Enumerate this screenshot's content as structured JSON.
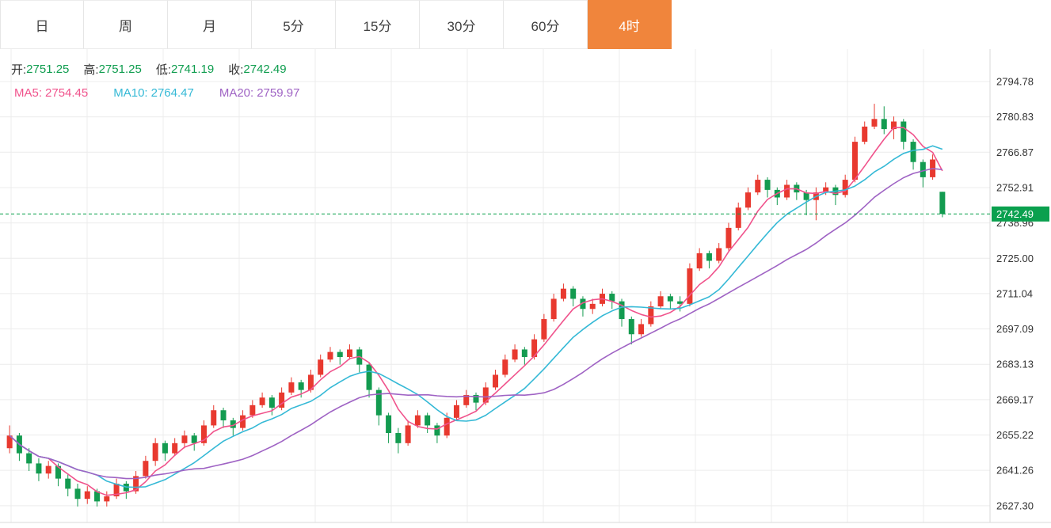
{
  "tabs": [
    {
      "label": "日",
      "active": false
    },
    {
      "label": "周",
      "active": false
    },
    {
      "label": "月",
      "active": false
    },
    {
      "label": "5分",
      "active": false
    },
    {
      "label": "15分",
      "active": false
    },
    {
      "label": "30分",
      "active": false
    },
    {
      "label": "60分",
      "active": false
    },
    {
      "label": "4时",
      "active": true
    }
  ],
  "info": {
    "open_label": "开:",
    "open": "2751.25",
    "high_label": "高:",
    "high": "2751.25",
    "low_label": "低:",
    "low": "2741.19",
    "close_label": "收:",
    "close": "2742.49",
    "ma5_label": "MA5:",
    "ma5": "2754.45",
    "ma10_label": "MA10:",
    "ma10": "2764.47",
    "ma20_label": "MA20:",
    "ma20": "2759.97"
  },
  "colors": {
    "accent": "#f0853c",
    "up": "#e8392f",
    "down": "#139b50",
    "ma5": "#f0538c",
    "ma10": "#35b9d6",
    "ma20": "#9f63c4",
    "grid": "#ececec",
    "axis_line": "#d9d9d9",
    "axis_text": "#333333",
    "price_line": "#0aa04e"
  },
  "axis": {
    "labels": [
      "2794.78",
      "2780.83",
      "2766.87",
      "2752.91",
      "2738.96",
      "2725.00",
      "2711.04",
      "2697.09",
      "2683.13",
      "2669.17",
      "2655.22",
      "2641.26",
      "2627.30"
    ]
  },
  "current_price": "2742.49",
  "chart_data": {
    "type": "candlestick",
    "timeframe": "4时",
    "ylim": [
      2618.5,
      2807.6
    ],
    "price_range": [
      2618.5,
      2807.6
    ],
    "legend": [
      "MA5",
      "MA10",
      "MA20"
    ],
    "ma_periods": [
      5,
      10,
      20
    ],
    "last_candle": {
      "open": 2751.25,
      "high": 2751.25,
      "low": 2741.19,
      "close": 2742.49
    },
    "ohlc": [
      [
        2650,
        2659,
        2648,
        2655
      ],
      [
        2655,
        2656,
        2645,
        2648
      ],
      [
        2648,
        2650,
        2641,
        2644
      ],
      [
        2644,
        2646,
        2637,
        2640
      ],
      [
        2640,
        2645,
        2638,
        2643
      ],
      [
        2643,
        2644,
        2635,
        2638
      ],
      [
        2638,
        2640,
        2631,
        2634
      ],
      [
        2634,
        2636,
        2627,
        2630
      ],
      [
        2630,
        2635,
        2628,
        2633
      ],
      [
        2633,
        2634,
        2627,
        2629
      ],
      [
        2629,
        2633,
        2627,
        2631
      ],
      [
        2631,
        2638,
        2630,
        2636
      ],
      [
        2636,
        2637,
        2630,
        2633
      ],
      [
        2633,
        2641,
        2632,
        2639
      ],
      [
        2639,
        2647,
        2638,
        2645
      ],
      [
        2645,
        2654,
        2643,
        2652
      ],
      [
        2652,
        2653,
        2645,
        2648
      ],
      [
        2648,
        2654,
        2647,
        2652
      ],
      [
        2652,
        2657,
        2650,
        2655
      ],
      [
        2655,
        2656,
        2649,
        2652
      ],
      [
        2652,
        2661,
        2651,
        2659
      ],
      [
        2659,
        2667,
        2658,
        2665
      ],
      [
        2665,
        2666,
        2658,
        2661
      ],
      [
        2661,
        2662,
        2655,
        2658
      ],
      [
        2658,
        2665,
        2657,
        2663
      ],
      [
        2663,
        2669,
        2662,
        2667
      ],
      [
        2667,
        2672,
        2666,
        2670
      ],
      [
        2670,
        2671,
        2663,
        2666
      ],
      [
        2666,
        2674,
        2665,
        2672
      ],
      [
        2672,
        2678,
        2671,
        2676
      ],
      [
        2676,
        2677,
        2670,
        2673
      ],
      [
        2673,
        2681,
        2672,
        2679
      ],
      [
        2679,
        2687,
        2678,
        2685
      ],
      [
        2685,
        2690,
        2684,
        2688
      ],
      [
        2688,
        2689,
        2683,
        2686
      ],
      [
        2686,
        2691,
        2685,
        2689
      ],
      [
        2689,
        2690,
        2680,
        2683
      ],
      [
        2683,
        2684,
        2670,
        2673
      ],
      [
        2673,
        2674,
        2659,
        2663
      ],
      [
        2663,
        2664,
        2652,
        2656
      ],
      [
        2656,
        2658,
        2648,
        2652
      ],
      [
        2652,
        2661,
        2651,
        2659
      ],
      [
        2659,
        2665,
        2658,
        2663
      ],
      [
        2663,
        2664,
        2656,
        2659
      ],
      [
        2659,
        2660,
        2652,
        2655
      ],
      [
        2655,
        2664,
        2654,
        2662
      ],
      [
        2662,
        2669,
        2661,
        2667
      ],
      [
        2667,
        2673,
        2666,
        2671
      ],
      [
        2671,
        2672,
        2665,
        2668
      ],
      [
        2668,
        2676,
        2667,
        2674
      ],
      [
        2674,
        2681,
        2673,
        2679
      ],
      [
        2679,
        2687,
        2678,
        2685
      ],
      [
        2685,
        2691,
        2684,
        2689
      ],
      [
        2689,
        2690,
        2683,
        2686
      ],
      [
        2686,
        2695,
        2685,
        2693
      ],
      [
        2693,
        2703,
        2692,
        2701
      ],
      [
        2701,
        2711,
        2700,
        2709
      ],
      [
        2709,
        2715,
        2708,
        2713
      ],
      [
        2713,
        2714,
        2706,
        2709
      ],
      [
        2709,
        2710,
        2702,
        2705
      ],
      [
        2705,
        2709,
        2703,
        2707
      ],
      [
        2707,
        2713,
        2706,
        2711
      ],
      [
        2711,
        2712,
        2705,
        2708
      ],
      [
        2708,
        2709,
        2698,
        2701
      ],
      [
        2701,
        2702,
        2691,
        2695
      ],
      [
        2695,
        2701,
        2694,
        2699
      ],
      [
        2699,
        2708,
        2698,
        2706
      ],
      [
        2706,
        2712,
        2705,
        2710
      ],
      [
        2710,
        2711,
        2705,
        2708
      ],
      [
        2708,
        2710,
        2704,
        2707
      ],
      [
        2707,
        2723,
        2706,
        2721
      ],
      [
        2721,
        2729,
        2720,
        2727
      ],
      [
        2727,
        2728,
        2721,
        2724
      ],
      [
        2724,
        2731,
        2723,
        2729
      ],
      [
        2729,
        2739,
        2728,
        2737
      ],
      [
        2737,
        2747,
        2736,
        2745
      ],
      [
        2745,
        2753,
        2744,
        2751
      ],
      [
        2751,
        2758,
        2750,
        2756
      ],
      [
        2756,
        2757,
        2749,
        2752
      ],
      [
        2752,
        2753,
        2746,
        2749
      ],
      [
        2749,
        2756,
        2748,
        2754
      ],
      [
        2754,
        2755,
        2748,
        2751
      ],
      [
        2751,
        2752,
        2742,
        2748
      ],
      [
        2748,
        2753,
        2740,
        2751
      ],
      [
        2751,
        2755,
        2750,
        2753
      ],
      [
        2753,
        2754,
        2746,
        2750
      ],
      [
        2750,
        2758,
        2749,
        2756
      ],
      [
        2756,
        2773,
        2755,
        2771
      ],
      [
        2771,
        2779,
        2770,
        2777
      ],
      [
        2777,
        2786,
        2776,
        2780
      ],
      [
        2780,
        2785,
        2774,
        2776
      ],
      [
        2776,
        2781,
        2772,
        2779
      ],
      [
        2779,
        2780,
        2768,
        2771
      ],
      [
        2771,
        2772,
        2760,
        2763
      ],
      [
        2763,
        2764,
        2753,
        2757
      ],
      [
        2757,
        2766,
        2756,
        2764
      ],
      [
        2751.25,
        2751.25,
        2741.19,
        2742.49
      ]
    ]
  }
}
